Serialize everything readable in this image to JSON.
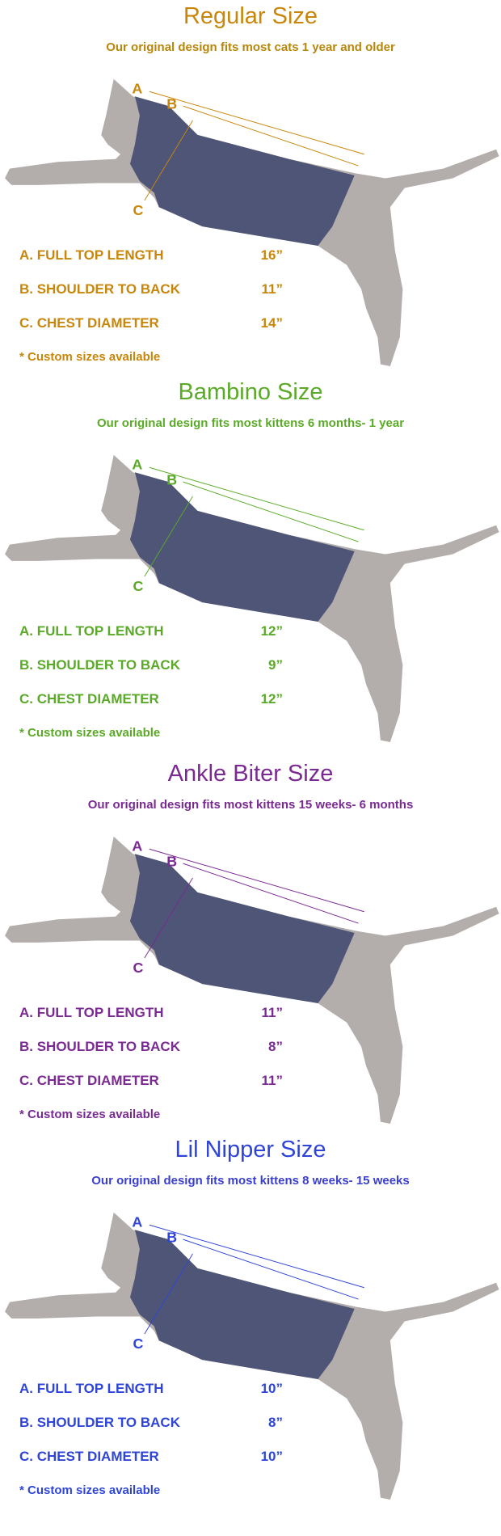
{
  "sizes": [
    {
      "title": "Regular Size",
      "subtitle": "Our original design fits most cats 1 year and older",
      "color": "#c8860a",
      "subcolor": "#b8860b",
      "labels": [
        "A",
        "B",
        "C"
      ],
      "rows": [
        {
          "label": "A. FULL TOP LENGTH",
          "value": "16”"
        },
        {
          "label": "B. SHOULDER TO BACK",
          "value": "11”"
        },
        {
          "label": "C. CHEST DIAMETER",
          "value": "14”"
        }
      ],
      "note": "* Custom sizes available"
    },
    {
      "title": "Bambino Size",
      "subtitle": "Our original design fits most kittens 6 months- 1 year",
      "color": "#5aaa28",
      "subcolor": "#5aaa28",
      "labels": [
        "A",
        "B",
        "C"
      ],
      "rows": [
        {
          "label": "A. FULL TOP LENGTH",
          "value": "12”"
        },
        {
          "label": "B. SHOULDER TO BACK",
          "value": "9”"
        },
        {
          "label": "C. CHEST DIAMETER",
          "value": "12”"
        }
      ],
      "note": "* Custom sizes available"
    },
    {
      "title": "Ankle Biter Size",
      "subtitle": "Our original design fits most kittens 15 weeks- 6 months",
      "color": "#7a2a92",
      "subcolor": "#7a2a92",
      "labels": [
        "A",
        "B",
        "C"
      ],
      "rows": [
        {
          "label": "A. FULL TOP LENGTH",
          "value": "11”"
        },
        {
          "label": "B. SHOULDER TO BACK",
          "value": "8”"
        },
        {
          "label": "C. CHEST DIAMETER",
          "value": "11”"
        }
      ],
      "note": "* Custom sizes available"
    },
    {
      "title": "Lil Nipper Size",
      "subtitle": "Our original design fits most kittens 8 weeks- 15 weeks",
      "color": "#2f45d8",
      "subcolor": "#3a3fcf",
      "labels": [
        "A",
        "B",
        "C"
      ],
      "rows": [
        {
          "label": "A. FULL TOP LENGTH",
          "value": "10”"
        },
        {
          "label": "B. SHOULDER TO BACK",
          "value": "8”"
        },
        {
          "label": "C. CHEST DIAMETER",
          "value": "10”"
        }
      ],
      "note": "* Custom sizes available"
    }
  ],
  "colors": {
    "cat": "#b3adab",
    "vest": "#4e5577"
  }
}
